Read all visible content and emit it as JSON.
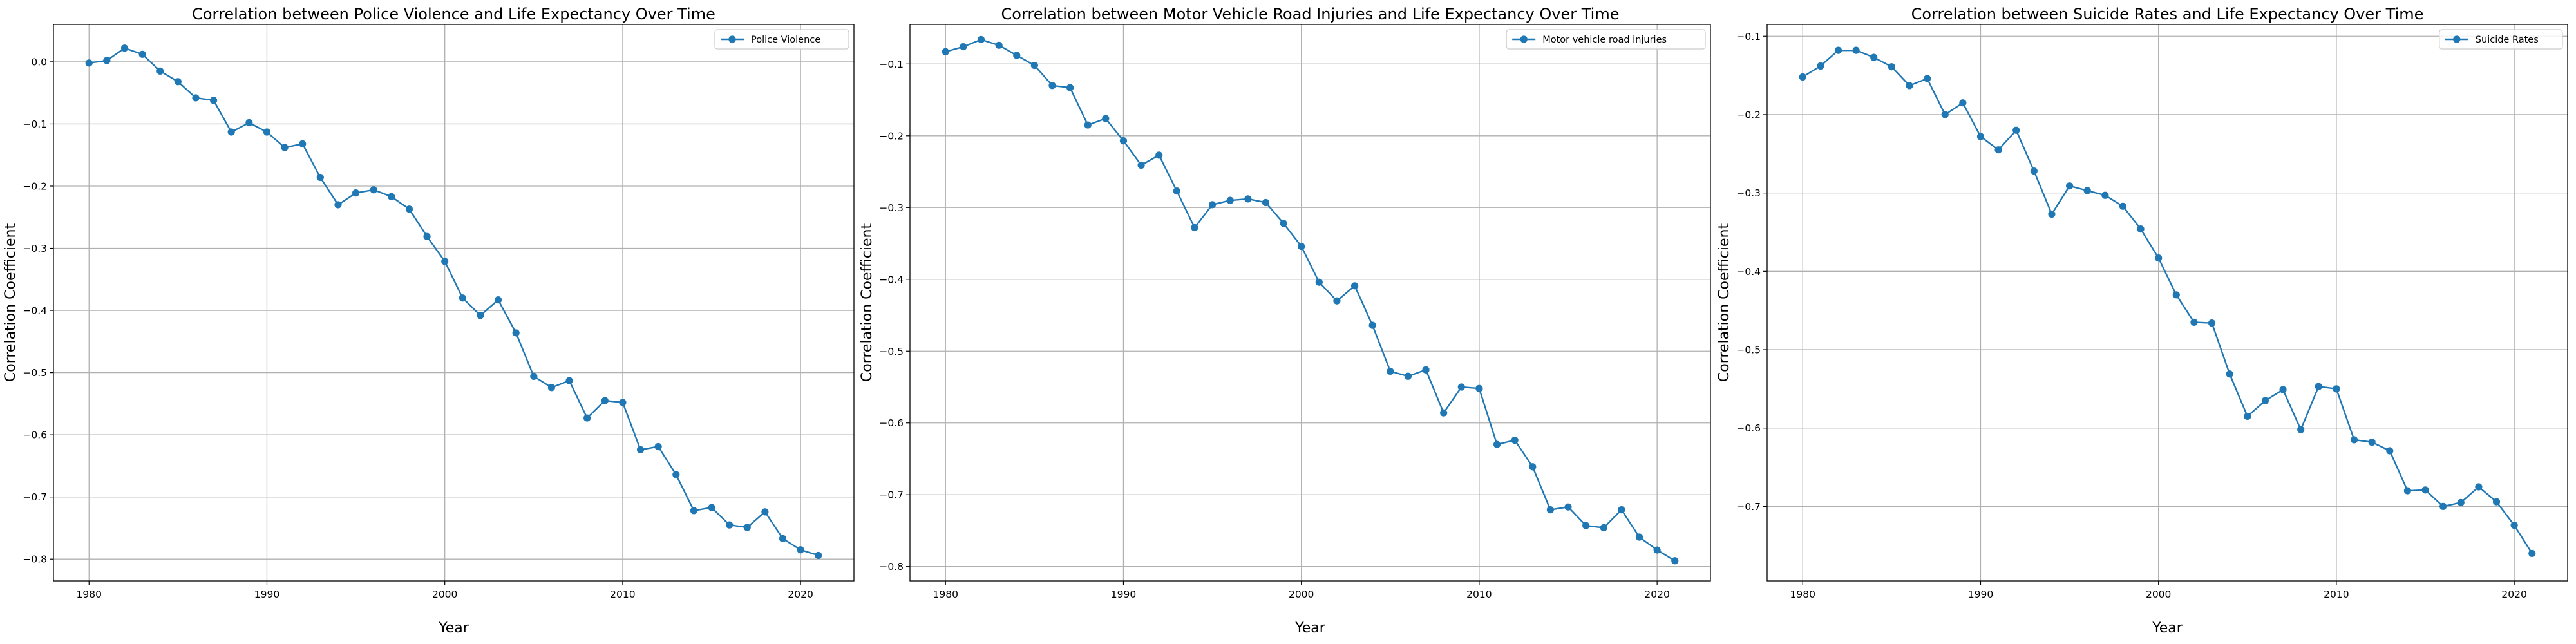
{
  "colors": {
    "series": "#1f77b4",
    "grid": "#b0b0b0",
    "axes": "#000000",
    "background": "#ffffff"
  },
  "chart_data": [
    {
      "type": "line",
      "title": "Correlation between Police Violence and Life Expectancy Over Time",
      "xlabel": "Year",
      "ylabel": "Correlation Coefficient",
      "xlim": [
        1978,
        2023
      ],
      "ylim": [
        -0.835,
        0.06
      ],
      "xticks": [
        1980,
        1990,
        2000,
        2010,
        2020
      ],
      "yticks": [
        0.0,
        -0.1,
        -0.2,
        -0.3,
        -0.4,
        -0.5,
        -0.6,
        -0.7,
        -0.8
      ],
      "ytick_labels": [
        "0.0",
        "−0.1",
        "−0.2",
        "−0.3",
        "−0.4",
        "−0.5",
        "−0.6",
        "−0.7",
        "−0.8"
      ],
      "grid": true,
      "legend": "top-right",
      "series": [
        {
          "name": "Police Violence",
          "x": [
            1980,
            1981,
            1982,
            1983,
            1984,
            1985,
            1986,
            1987,
            1988,
            1989,
            1990,
            1991,
            1992,
            1993,
            1994,
            1995,
            1996,
            1997,
            1998,
            1999,
            2000,
            2001,
            2002,
            2003,
            2004,
            2005,
            2006,
            2007,
            2008,
            2009,
            2010,
            2011,
            2012,
            2013,
            2014,
            2015,
            2016,
            2017,
            2018,
            2019,
            2020,
            2021
          ],
          "y": [
            -0.002,
            0.002,
            0.022,
            0.012,
            -0.015,
            -0.032,
            -0.058,
            -0.062,
            -0.113,
            -0.098,
            -0.113,
            -0.138,
            -0.132,
            -0.186,
            -0.23,
            -0.211,
            -0.206,
            -0.217,
            -0.237,
            -0.281,
            -0.321,
            -0.38,
            -0.408,
            -0.383,
            -0.436,
            -0.506,
            -0.524,
            -0.513,
            -0.573,
            -0.545,
            -0.548,
            -0.624,
            -0.619,
            -0.664,
            -0.722,
            -0.717,
            -0.745,
            -0.749,
            -0.724,
            -0.767,
            -0.785,
            -0.794
          ]
        }
      ]
    },
    {
      "type": "line",
      "title": "Correlation between Motor Vehicle Road Injuries and Life Expectancy Over Time",
      "xlabel": "Year",
      "ylabel": "Correlation Coefficient",
      "xlim": [
        1978,
        2023
      ],
      "ylim": [
        -0.82,
        -0.045
      ],
      "xticks": [
        1980,
        1990,
        2000,
        2010,
        2020
      ],
      "yticks": [
        -0.1,
        -0.2,
        -0.3,
        -0.4,
        -0.5,
        -0.6,
        -0.7,
        -0.8
      ],
      "ytick_labels": [
        "−0.1",
        "−0.2",
        "−0.3",
        "−0.4",
        "−0.5",
        "−0.6",
        "−0.7",
        "−0.8"
      ],
      "grid": true,
      "legend": "top-right",
      "series": [
        {
          "name": "Motor vehicle road injuries",
          "x": [
            1980,
            1981,
            1982,
            1983,
            1984,
            1985,
            1986,
            1987,
            1988,
            1989,
            1990,
            1991,
            1992,
            1993,
            1994,
            1995,
            1996,
            1997,
            1998,
            1999,
            2000,
            2001,
            2002,
            2003,
            2004,
            2005,
            2006,
            2007,
            2008,
            2009,
            2010,
            2011,
            2012,
            2013,
            2014,
            2015,
            2016,
            2017,
            2018,
            2019,
            2020,
            2021
          ],
          "y": [
            -0.083,
            -0.076,
            -0.066,
            -0.074,
            -0.088,
            -0.102,
            -0.13,
            -0.133,
            -0.185,
            -0.176,
            -0.207,
            -0.241,
            -0.227,
            -0.277,
            -0.328,
            -0.296,
            -0.29,
            -0.288,
            -0.293,
            -0.322,
            -0.354,
            -0.404,
            -0.43,
            -0.409,
            -0.464,
            -0.528,
            -0.535,
            -0.526,
            -0.586,
            -0.55,
            -0.552,
            -0.63,
            -0.624,
            -0.661,
            -0.721,
            -0.717,
            -0.743,
            -0.746,
            -0.721,
            -0.759,
            -0.777,
            -0.792
          ]
        }
      ]
    },
    {
      "type": "line",
      "title": "Correlation between Suicide Rates and Life Expectancy Over Time",
      "xlabel": "Year",
      "ylabel": "Correlation Coefficient",
      "xlim": [
        1978,
        2023
      ],
      "ylim": [
        -0.795,
        -0.085
      ],
      "xticks": [
        1980,
        1990,
        2000,
        2010,
        2020
      ],
      "yticks": [
        -0.1,
        -0.2,
        -0.3,
        -0.4,
        -0.5,
        -0.6,
        -0.7
      ],
      "ytick_labels": [
        "−0.1",
        "−0.2",
        "−0.3",
        "−0.4",
        "−0.5",
        "−0.6",
        "−0.7"
      ],
      "grid": true,
      "legend": "top-right",
      "series": [
        {
          "name": "Suicide Rates",
          "x": [
            1980,
            1981,
            1982,
            1983,
            1984,
            1985,
            1986,
            1987,
            1988,
            1989,
            1990,
            1991,
            1992,
            1993,
            1994,
            1995,
            1996,
            1997,
            1998,
            1999,
            2000,
            2001,
            2002,
            2003,
            2004,
            2005,
            2006,
            2007,
            2008,
            2009,
            2010,
            2011,
            2012,
            2013,
            2014,
            2015,
            2016,
            2017,
            2018,
            2019,
            2020,
            2021
          ],
          "y": [
            -0.152,
            -0.138,
            -0.118,
            -0.118,
            -0.127,
            -0.139,
            -0.163,
            -0.154,
            -0.2,
            -0.185,
            -0.228,
            -0.245,
            -0.22,
            -0.272,
            -0.327,
            -0.291,
            -0.297,
            -0.303,
            -0.317,
            -0.346,
            -0.383,
            -0.43,
            -0.465,
            -0.466,
            -0.531,
            -0.585,
            -0.565,
            -0.551,
            -0.602,
            -0.547,
            -0.55,
            -0.615,
            -0.618,
            -0.629,
            -0.68,
            -0.679,
            -0.7,
            -0.695,
            -0.675,
            -0.694,
            -0.724,
            -0.76
          ]
        }
      ]
    }
  ]
}
